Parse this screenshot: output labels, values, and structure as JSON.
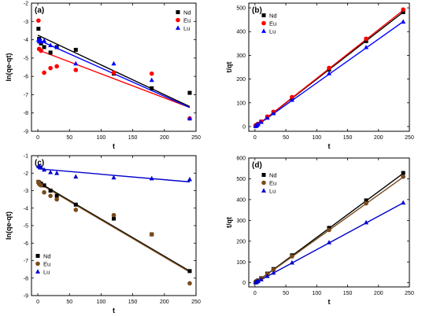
{
  "chart_data": [
    {
      "panel_label": "(a)",
      "type": "scatter",
      "xlabel": "t",
      "ylabel": "ln(qe-qt)",
      "xlim": [
        -10,
        250
      ],
      "ylim": [
        -9,
        -2
      ],
      "xticks": [
        0,
        50,
        100,
        150,
        200,
        250
      ],
      "yticks": [
        -9,
        -8,
        -7,
        -6,
        -5,
        -4,
        -3,
        -2
      ],
      "legend_position": "top-right",
      "series": [
        {
          "name": "Nd",
          "color": "#000000",
          "marker": "square",
          "points": [
            [
              1,
              -3.4
            ],
            [
              2,
              -3.95
            ],
            [
              3,
              -4.05
            ],
            [
              5,
              -4.2
            ],
            [
              10,
              -4.4
            ],
            [
              20,
              -4.7
            ],
            [
              30,
              -4.4
            ],
            [
              60,
              -4.55
            ],
            [
              120,
              -5.85
            ],
            [
              180,
              -6.65
            ],
            [
              240,
              -6.9
            ]
          ],
          "fit": [
            [
              0,
              -3.75
            ],
            [
              240,
              -7.65
            ]
          ]
        },
        {
          "name": "Eu",
          "color": "#ff0000",
          "marker": "circle",
          "points": [
            [
              1,
              -2.95
            ],
            [
              2,
              -4.5
            ],
            [
              5,
              -4.6
            ],
            [
              10,
              -5.8
            ],
            [
              20,
              -5.55
            ],
            [
              30,
              -5.45
            ],
            [
              60,
              -5.65
            ],
            [
              120,
              -5.8
            ],
            [
              180,
              -5.85
            ],
            [
              240,
              -8.3
            ]
          ],
          "fit": [
            [
              0,
              -4.55
            ],
            [
              240,
              -7.7
            ]
          ]
        },
        {
          "name": "Lu",
          "color": "#0000ff",
          "marker": "triangle",
          "points": [
            [
              1,
              -4
            ],
            [
              2,
              -4.1
            ],
            [
              3,
              -4.0
            ],
            [
              5,
              -4.1
            ],
            [
              10,
              -4.05
            ],
            [
              20,
              -4.3
            ],
            [
              30,
              -4.4
            ],
            [
              60,
              -5.3
            ],
            [
              120,
              -5.3
            ],
            [
              180,
              -6.2
            ],
            [
              240,
              -8.3
            ]
          ],
          "fit": [
            [
              0,
              -4.0
            ],
            [
              240,
              -7.7
            ]
          ]
        }
      ]
    },
    {
      "panel_label": "(b)",
      "type": "scatter",
      "xlabel": "t",
      "ylabel": "t/qt",
      "xlim": [
        -10,
        250
      ],
      "ylim": [
        -20,
        520
      ],
      "xticks": [
        0,
        50,
        100,
        150,
        200,
        250
      ],
      "yticks": [
        0,
        100,
        200,
        300,
        400,
        500
      ],
      "legend_position": "top-left",
      "series": [
        {
          "name": "Nd",
          "color": "#000000",
          "marker": "square",
          "points": [
            [
              1,
              2
            ],
            [
              2,
              4
            ],
            [
              3,
              6
            ],
            [
              5,
              10
            ],
            [
              10,
              20
            ],
            [
              20,
              40
            ],
            [
              30,
              60
            ],
            [
              60,
              120
            ],
            [
              120,
              240
            ],
            [
              180,
              360
            ],
            [
              240,
              482
            ]
          ],
          "fit": [
            [
              0,
              -2
            ],
            [
              240,
              482
            ]
          ]
        },
        {
          "name": "Eu",
          "color": "#ff0000",
          "marker": "circle",
          "points": [
            [
              1,
              2
            ],
            [
              2,
              4
            ],
            [
              3,
              6
            ],
            [
              5,
              11
            ],
            [
              10,
              21
            ],
            [
              20,
              42
            ],
            [
              30,
              62
            ],
            [
              60,
              124
            ],
            [
              120,
              247
            ],
            [
              180,
              370
            ],
            [
              240,
              493
            ]
          ],
          "fit": [
            [
              0,
              -2
            ],
            [
              240,
              490
            ]
          ]
        },
        {
          "name": "Lu",
          "color": "#0000ff",
          "marker": "triangle",
          "points": [
            [
              1,
              2
            ],
            [
              2,
              4
            ],
            [
              3,
              5
            ],
            [
              5,
              10
            ],
            [
              10,
              19
            ],
            [
              20,
              37
            ],
            [
              30,
              56
            ],
            [
              60,
              112
            ],
            [
              120,
              224
            ],
            [
              180,
              334
            ],
            [
              240,
              442
            ]
          ],
          "fit": [
            [
              0,
              -1
            ],
            [
              240,
              442
            ]
          ]
        }
      ]
    },
    {
      "panel_label": "(c)",
      "type": "scatter",
      "xlabel": "t",
      "ylabel": "ln(qe-qt)",
      "xlim": [
        -10,
        250
      ],
      "ylim": [
        -9,
        -1
      ],
      "xticks": [
        0,
        50,
        100,
        150,
        200,
        250
      ],
      "yticks": [
        -9,
        -8,
        -7,
        -6,
        -5,
        -4,
        -3,
        -2,
        -1
      ],
      "legend_position": "bottom-left",
      "series": [
        {
          "name": "Nd",
          "color": "#000000",
          "marker": "square",
          "points": [
            [
              1,
              -2.5
            ],
            [
              2,
              -2.55
            ],
            [
              3,
              -2.6
            ],
            [
              5,
              -2.6
            ],
            [
              10,
              -2.7
            ],
            [
              20,
              -3.0
            ],
            [
              30,
              -3.3
            ],
            [
              60,
              -3.8
            ],
            [
              120,
              -4.6
            ],
            [
              180,
              -5.5
            ],
            [
              240,
              -7.6
            ]
          ],
          "fit": [
            [
              0,
              -2.5
            ],
            [
              240,
              -7.6
            ]
          ]
        },
        {
          "name": "Eu",
          "color": "#7a4a1a",
          "marker": "circle",
          "points": [
            [
              1,
              -2.5
            ],
            [
              2,
              -2.6
            ],
            [
              3,
              -2.65
            ],
            [
              5,
              -2.7
            ],
            [
              10,
              -3.1
            ],
            [
              20,
              -3.3
            ],
            [
              30,
              -3.5
            ],
            [
              60,
              -4.1
            ],
            [
              120,
              -4.4
            ],
            [
              180,
              -5.5
            ],
            [
              240,
              -8.3
            ]
          ],
          "fit": [
            [
              0,
              -2.55
            ],
            [
              240,
              -7.65
            ]
          ]
        },
        {
          "name": "Lu",
          "color": "#0000cc",
          "marker": "triangle",
          "points": [
            [
              1,
              -1.6
            ],
            [
              2,
              -1.6
            ],
            [
              5,
              -1.65
            ],
            [
              10,
              -1.8
            ],
            [
              20,
              -1.95
            ],
            [
              30,
              -2.0
            ],
            [
              60,
              -2.2
            ],
            [
              120,
              -2.25
            ],
            [
              180,
              -2.3
            ],
            [
              240,
              -2.35
            ]
          ],
          "fit": [
            [
              0,
              -1.75
            ],
            [
              240,
              -2.5
            ]
          ]
        }
      ]
    },
    {
      "panel_label": "(d)",
      "type": "scatter",
      "xlabel": "t",
      "ylabel": "t/qt",
      "xlim": [
        -10,
        250
      ],
      "ylim": [
        -20,
        600
      ],
      "xticks": [
        0,
        50,
        100,
        150,
        200,
        250
      ],
      "yticks": [
        0,
        100,
        200,
        300,
        400,
        500,
        600
      ],
      "legend_position": "top-left",
      "series": [
        {
          "name": "Nd",
          "color": "#000000",
          "marker": "square",
          "points": [
            [
              1,
              2
            ],
            [
              2,
              4
            ],
            [
              3,
              7
            ],
            [
              5,
              11
            ],
            [
              10,
              22
            ],
            [
              20,
              44
            ],
            [
              30,
              66
            ],
            [
              60,
              132
            ],
            [
              120,
              264
            ],
            [
              180,
              396
            ],
            [
              240,
              528
            ]
          ],
          "fit": [
            [
              0,
              -2
            ],
            [
              240,
              526
            ]
          ]
        },
        {
          "name": "Eu",
          "color": "#7a4a1a",
          "marker": "circle",
          "points": [
            [
              1,
              2
            ],
            [
              2,
              4
            ],
            [
              3,
              6
            ],
            [
              5,
              11
            ],
            [
              10,
              21
            ],
            [
              20,
              42
            ],
            [
              30,
              63
            ],
            [
              60,
              127
            ],
            [
              120,
              254
            ],
            [
              180,
              382
            ],
            [
              240,
              510
            ]
          ],
          "fit": [
            [
              0,
              -2
            ],
            [
              240,
              508
            ]
          ]
        },
        {
          "name": "Lu",
          "color": "#0000cc",
          "marker": "triangle",
          "points": [
            [
              1,
              2
            ],
            [
              2,
              3
            ],
            [
              3,
              5
            ],
            [
              5,
              8
            ],
            [
              10,
              16
            ],
            [
              20,
              32
            ],
            [
              30,
              48
            ],
            [
              60,
              97
            ],
            [
              120,
              194
            ],
            [
              180,
              290
            ],
            [
              240,
              385
            ]
          ],
          "fit": [
            [
              0,
              -1
            ],
            [
              240,
              384
            ]
          ]
        }
      ]
    }
  ]
}
